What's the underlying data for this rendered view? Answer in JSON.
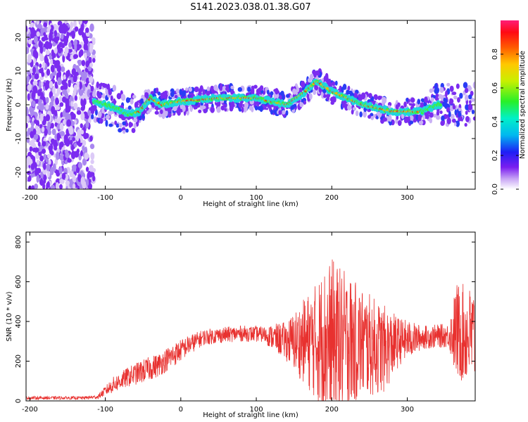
{
  "title": "S141.2023.038.01.38.G07",
  "colors": {
    "snr_line": "#e8312f",
    "frame": "#000000",
    "background_points": "#7b2cf0",
    "ridge": "#ff2a00"
  },
  "chart_data": [
    {
      "type": "heatmap",
      "xlabel": "Height of straight line (km)",
      "ylabel": "Frequency (Hz)",
      "xlim": [
        -205,
        390
      ],
      "ylim": [
        -25,
        25
      ],
      "xticks": [
        -200,
        -100,
        0,
        100,
        200,
        300
      ],
      "yticks": [
        -20,
        -10,
        0,
        10,
        20
      ],
      "colorbar": {
        "label": "Normalized spectral amplitude",
        "range": [
          0,
          1
        ],
        "ticks": [
          0.0,
          0.2,
          0.4,
          0.6,
          0.8
        ]
      },
      "ridge": {
        "x": [
          -115,
          -100,
          -85,
          -70,
          -55,
          -40,
          -25,
          0,
          50,
          100,
          140,
          160,
          180,
          200,
          240,
          280,
          320,
          340
        ],
        "y": [
          1,
          0,
          -1,
          -3,
          -2,
          2,
          0,
          1,
          2,
          2,
          0,
          3,
          7,
          4,
          0,
          -2,
          -2,
          0
        ]
      },
      "grid": false
    },
    {
      "type": "line",
      "xlabel": "Height of straight line (km)",
      "ylabel": "SNR (10 * v/v)",
      "xlim": [
        -205,
        390
      ],
      "ylim": [
        0,
        850
      ],
      "xticks": [
        -200,
        -100,
        0,
        100,
        200,
        300
      ],
      "yticks": [
        0,
        200,
        400,
        600,
        800
      ],
      "series": [
        {
          "envelope_x": [
            -205,
            -130,
            -110,
            -90,
            -70,
            -50,
            -30,
            -10,
            10,
            30,
            50,
            80,
            110,
            140,
            160,
            180,
            190,
            200,
            210,
            230,
            250,
            270,
            290,
            320,
            355,
            365,
            390
          ],
          "envelope_center": [
            15,
            15,
            20,
            80,
            120,
            150,
            180,
            230,
            280,
            320,
            330,
            340,
            335,
            300,
            300,
            300,
            300,
            300,
            300,
            300,
            280,
            260,
            300,
            320,
            330,
            350,
            320
          ],
          "envelope_spread": [
            8,
            8,
            10,
            40,
            50,
            60,
            60,
            60,
            50,
            40,
            40,
            40,
            40,
            100,
            200,
            300,
            380,
            420,
            380,
            320,
            260,
            220,
            120,
            60,
            60,
            250,
            250
          ]
        }
      ],
      "grid": false
    }
  ]
}
